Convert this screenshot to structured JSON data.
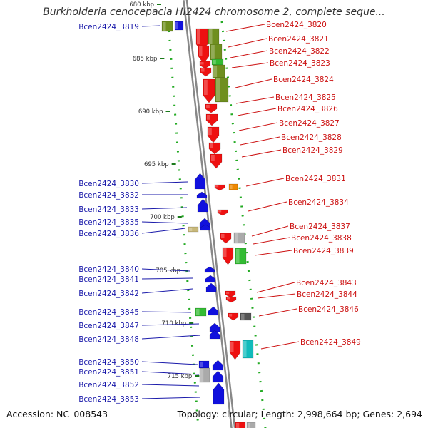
{
  "title": "Burkholderia cenocepacia HI2424 chromosome 2, complete seque...",
  "accession": "Accession: NC_008543",
  "topology": "Topology: circular; Length: 2,998,664 bp; Genes: 2,694",
  "colors": {
    "left_label": "#1a1aaa",
    "right_label": "#cc1111",
    "forward": "#ee1111",
    "reverse": "#1111dd",
    "olive": "#6f8f1f",
    "green": "#33bb33",
    "orange": "#ee8800",
    "gray": "#aaaaaa",
    "teal": "#11bbbb",
    "tan": "#c8b87a",
    "darkgray": "#555555",
    "dots": "#22aa22",
    "backbone": "#888888"
  },
  "ticks": [
    "680 kbp",
    "685 kbp",
    "690 kbp",
    "695 kbp",
    "700 kbp",
    "705 kbp",
    "710 kbp",
    "715 kbp"
  ],
  "left_genes": [
    "Bcen2424_3819",
    "Bcen2424_3830",
    "Bcen2424_3832",
    "Bcen2424_3833",
    "Bcen2424_3835",
    "Bcen2424_3836",
    "Bcen2424_3840",
    "Bcen2424_3841",
    "Bcen2424_3842",
    "Bcen2424_3845",
    "Bcen2424_3847",
    "Bcen2424_3848",
    "Bcen2424_3850",
    "Bcen2424_3851",
    "Bcen2424_3852",
    "Bcen2424_3853"
  ],
  "right_genes": [
    "Bcen2424_3820",
    "Bcen2424_3821",
    "Bcen2424_3822",
    "Bcen2424_3823",
    "Bcen2424_3824",
    "Bcen2424_3825",
    "Bcen2424_3826",
    "Bcen2424_3827",
    "Bcen2424_3828",
    "Bcen2424_3829",
    "Bcen2424_3831",
    "Bcen2424_3834",
    "Bcen2424_3837",
    "Bcen2424_3838",
    "Bcen2424_3839",
    "Bcen2424_3843",
    "Bcen2424_3844",
    "Bcen2424_3846",
    "Bcen2424_3849"
  ]
}
